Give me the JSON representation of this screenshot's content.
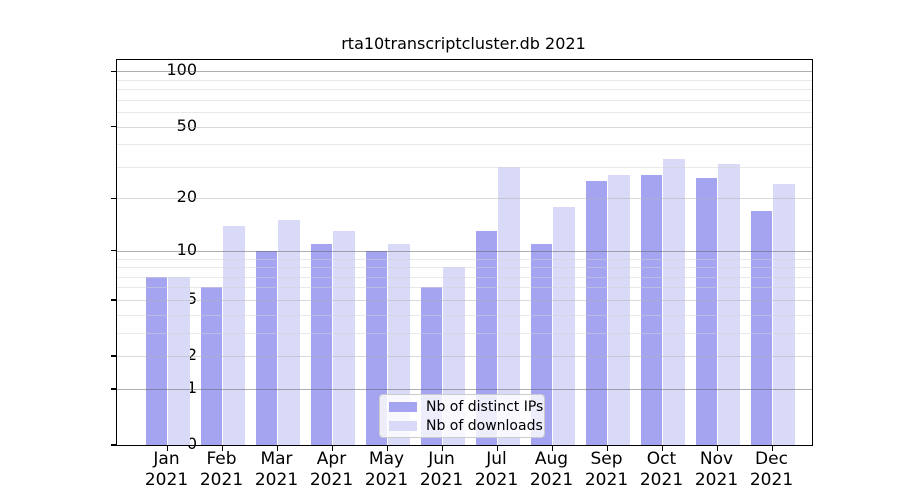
{
  "title": "rta10transcriptcluster.db 2021",
  "chart_data": {
    "type": "bar",
    "title": "rta10transcriptcluster.db 2021",
    "categories": [
      "Jan 2021",
      "Feb 2021",
      "Mar 2021",
      "Apr 2021",
      "May 2021",
      "Jun 2021",
      "Jul 2021",
      "Aug 2021",
      "Sep 2021",
      "Oct 2021",
      "Nov 2021",
      "Dec 2021"
    ],
    "series": [
      {
        "name": "Nb of distinct IPs",
        "color": "#a4a4f0",
        "values": [
          7,
          6,
          10,
          11,
          10,
          6,
          13,
          11,
          25,
          27,
          26,
          17
        ]
      },
      {
        "name": "Nb of downloads",
        "color": "#d9d9f8",
        "values": [
          7,
          14,
          15,
          13,
          11,
          8,
          30,
          18,
          27,
          33,
          31,
          24
        ]
      }
    ],
    "xlabel": "",
    "ylabel": "",
    "yscale": "log1p",
    "yticks": [
      0,
      1,
      2,
      5,
      10,
      20,
      50,
      100
    ],
    "minor_gridline_values": [
      3,
      4,
      6,
      7,
      8,
      9,
      30,
      40,
      60,
      70,
      80,
      90
    ],
    "ylim": [
      0,
      115
    ],
    "grid": true,
    "legend_position": "lower center",
    "grid_color_decade": "rgba(95,95,95,0.5)",
    "grid_color_mid": "rgba(180,180,180,0.5)",
    "grid_color_minor": "rgba(212,212,212,0.5)",
    "decade_gridlines": [
      1,
      10,
      100
    ]
  }
}
